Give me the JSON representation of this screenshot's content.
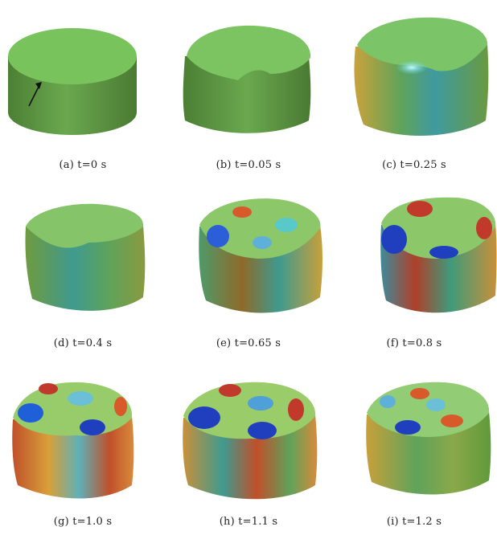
{
  "figure": {
    "panels": [
      {
        "id": "a",
        "caption": "(a) t=0 s",
        "time_s": 0
      },
      {
        "id": "b",
        "caption": "(b) t=0.05 s",
        "time_s": 0.05
      },
      {
        "id": "c",
        "caption": "(c) t=0.25 s",
        "time_s": 0.25
      },
      {
        "id": "d",
        "caption": "(d) t=0.4 s",
        "time_s": 0.4
      },
      {
        "id": "e",
        "caption": "(e) t=0.65 s",
        "time_s": 0.65
      },
      {
        "id": "f",
        "caption": "(f) t=0.8 s",
        "time_s": 0.8
      },
      {
        "id": "g",
        "caption": "(g) t=1.0 s",
        "time_s": 1.0
      },
      {
        "id": "h",
        "caption": "(h) t=1.1 s",
        "time_s": 1.1
      },
      {
        "id": "i",
        "caption": "(i) t=1.2 s",
        "time_s": 1.2
      }
    ],
    "colors": {
      "base_green": "#6aa84f",
      "dark_green": "#4e7f35",
      "hot": "#c0392b",
      "warm": "#e8a33d",
      "cool": "#1f3fbf",
      "cyan": "#55d6e0"
    }
  }
}
